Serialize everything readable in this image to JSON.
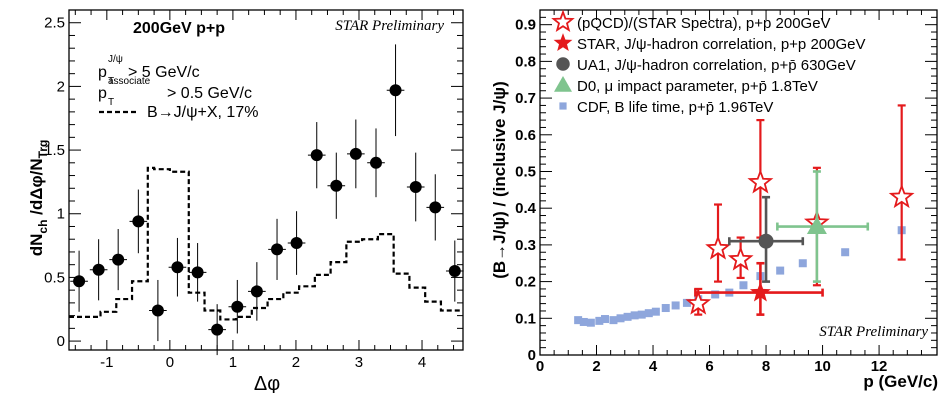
{
  "chart_data": [
    {
      "type": "scatter",
      "title": "200GeV p+p",
      "watermark": "STAR Preliminary",
      "xlabel": "Δφ",
      "ylabel": {
        "main": "dN",
        "sub1": "ch",
        "mid": " /dΔφ/N",
        "sub2": "Trg"
      },
      "xlim": [
        -1.6,
        4.65
      ],
      "ylim": [
        -0.07,
        2.6
      ],
      "grid": false,
      "xticks": [
        -1,
        0,
        1,
        2,
        3,
        4
      ],
      "yticks": [
        0,
        0.5,
        1,
        1.5,
        2,
        2.5
      ],
      "xtick_labels": [
        "-1",
        "0",
        "1",
        "2",
        "3",
        "4"
      ],
      "ytick_labels": [
        "0",
        "0.5",
        "1",
        "1.5",
        "2",
        "2.5"
      ],
      "annotations": {
        "cut1_main": "p",
        "cut1_sub": "T",
        "cut1_sup": "J/ψ",
        "cut1_rest": " > 5 GeV/c",
        "cut2_main": "p",
        "cut2_sub": "T",
        "cut2_sup": "associate",
        "cut2_rest": " > 0.5 GeV/c",
        "dashed_label": "B→J/ψ+X, 17%"
      },
      "series": [
        {
          "marker": "filled-circle",
          "color": "#000000",
          "x": [
            -1.44,
            -1.13,
            -0.82,
            -0.5,
            -0.19,
            0.12,
            0.44,
            0.75,
            1.07,
            1.38,
            1.7,
            2.01,
            2.33,
            2.64,
            2.95,
            3.27,
            3.58,
            3.9,
            4.21,
            4.52
          ],
          "y": [
            0.47,
            0.56,
            0.64,
            0.94,
            0.24,
            0.58,
            0.54,
            0.09,
            0.27,
            0.39,
            0.72,
            0.77,
            1.46,
            1.22,
            1.47,
            1.4,
            1.97,
            1.21,
            1.05,
            0.55
          ],
          "yerr": [
            0.24,
            0.24,
            0.24,
            0.25,
            0.24,
            0.23,
            0.23,
            0.2,
            0.21,
            0.23,
            0.24,
            0.25,
            0.26,
            0.26,
            0.27,
            0.27,
            0.36,
            0.27,
            0.26,
            0.24
          ],
          "xerr": 0.14
        },
        {
          "marker": "dashed-step",
          "color": "#000000",
          "edges": [
            -1.6,
            -1.1,
            -0.85,
            -0.6,
            -0.35,
            -0.25,
            0.0,
            0.3,
            0.55,
            0.8,
            1.05,
            1.3,
            1.55,
            1.8,
            2.05,
            2.3,
            2.55,
            2.8,
            3.05,
            3.3,
            3.55,
            3.8,
            4.05,
            4.3,
            4.65
          ],
          "values": [
            0.19,
            0.23,
            0.33,
            0.47,
            1.36,
            1.35,
            1.33,
            0.38,
            0.24,
            0.17,
            0.19,
            0.26,
            0.33,
            0.38,
            0.43,
            0.52,
            0.62,
            0.78,
            0.8,
            0.84,
            0.53,
            0.42,
            0.31,
            0.24
          ]
        }
      ]
    },
    {
      "type": "scatter",
      "watermark": "STAR Preliminary",
      "xlabel": "p   (GeV/c)",
      "ylabel": "(B→J/ψ) / (inclusive J/ψ)",
      "xlim": [
        0,
        14.05
      ],
      "ylim": [
        0,
        0.94
      ],
      "grid": false,
      "xticks": [
        0,
        2,
        4,
        6,
        8,
        10,
        12
      ],
      "yticks": [
        0,
        0.1,
        0.2,
        0.3,
        0.4,
        0.5,
        0.6,
        0.7,
        0.8,
        0.9
      ],
      "xtick_labels": [
        "0",
        "2",
        "4",
        "6",
        "8",
        "10",
        "12"
      ],
      "ytick_labels": [
        "0",
        "0.1",
        "0.2",
        "0.3",
        "0.4",
        "0.5",
        "0.6",
        "0.7",
        "0.8",
        "0.9"
      ],
      "legend_position": "top-left",
      "series": [
        {
          "name": "(pQCD)/(STAR Spectra), p+p 200GeV",
          "marker": "open-star",
          "color": "#e41a1c",
          "x": [
            5.6,
            6.3,
            7.1,
            7.8,
            9.8,
            12.8
          ],
          "y": [
            0.14,
            0.29,
            0.26,
            0.47,
            0.36,
            0.43
          ],
          "ylo": [
            0.11,
            0.2,
            0.21,
            0.32,
            0.19,
            0.26
          ],
          "yhi": [
            0.18,
            0.41,
            0.32,
            0.64,
            0.51,
            0.68
          ]
        },
        {
          "name": "STAR, J/ψ-hadron correlation, p+p 200GeV",
          "marker": "filled-star",
          "color": "#e41a1c",
          "x": [
            7.8
          ],
          "y": [
            0.17
          ],
          "xlo": [
            5.5
          ],
          "xhi": [
            10.0
          ],
          "ylo": [
            0.11
          ],
          "yhi": [
            0.25
          ]
        },
        {
          "name": "UA1, J/ψ-hadron correlation, p+p̄ 630GeV",
          "marker": "filled-circle",
          "color": "#555555",
          "x": [
            8.0
          ],
          "y": [
            0.31
          ],
          "xlo": [
            6.7
          ],
          "xhi": [
            9.3
          ],
          "ylo": [
            0.2
          ],
          "yhi": [
            0.43
          ]
        },
        {
          "name": "D0, μ impact parameter, p+p̄ 1.8TeV",
          "marker": "filled-triangle",
          "color": "#7fc48e",
          "x": [
            9.8
          ],
          "y": [
            0.35
          ],
          "xlo": [
            8.4
          ],
          "xhi": [
            11.6
          ],
          "ylo": [
            0.2
          ],
          "yhi": [
            0.5
          ]
        },
        {
          "name": "CDF, B life time, p+p̄ 1.96TeV",
          "marker": "filled-square",
          "color": "#8ea6dc",
          "x": [
            1.35,
            1.55,
            1.8,
            2.1,
            2.3,
            2.6,
            2.85,
            3.1,
            3.35,
            3.6,
            3.85,
            4.1,
            4.45,
            4.8,
            5.2,
            5.6,
            6.2,
            6.7,
            7.2,
            7.8,
            8.5,
            9.3,
            10.8,
            12.8
          ],
          "y": [
            0.095,
            0.09,
            0.088,
            0.093,
            0.098,
            0.095,
            0.1,
            0.104,
            0.108,
            0.11,
            0.114,
            0.118,
            0.128,
            0.135,
            0.142,
            0.152,
            0.165,
            0.17,
            0.19,
            0.215,
            0.23,
            0.25,
            0.28,
            0.34
          ]
        }
      ]
    }
  ]
}
